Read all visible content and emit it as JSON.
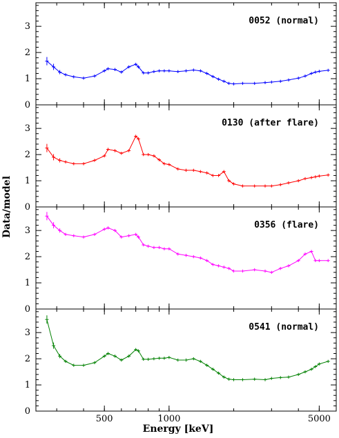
{
  "chart_data": {
    "type": "scatter",
    "xlabel": "Energy [keV]",
    "ylabel": "Data/model",
    "xscale": "log",
    "xlim": [
      240,
      6000
    ],
    "ylim": [
      0,
      3.9
    ],
    "x_ticks": [
      500,
      1000,
      5000
    ],
    "y_ticks": [
      0,
      1,
      2,
      3
    ],
    "x": [
      270,
      290,
      310,
      330,
      360,
      400,
      450,
      500,
      520,
      560,
      600,
      650,
      700,
      720,
      760,
      800,
      850,
      900,
      950,
      1000,
      1100,
      1200,
      1300,
      1400,
      1500,
      1600,
      1700,
      1800,
      1900,
      2000,
      2200,
      2500,
      2800,
      3000,
      3300,
      3600,
      4000,
      4300,
      4600,
      4800,
      5000,
      5500
    ],
    "series": [
      {
        "name": "",
        "label": "0052 (normal)",
        "color": "#0000ff",
        "values": [
          1.67,
          1.45,
          1.25,
          1.15,
          1.07,
          1.02,
          1.1,
          1.3,
          1.38,
          1.35,
          1.25,
          1.45,
          1.55,
          1.45,
          1.22,
          1.22,
          1.27,
          1.3,
          1.3,
          1.3,
          1.27,
          1.3,
          1.33,
          1.3,
          1.2,
          1.08,
          0.98,
          0.9,
          0.82,
          0.8,
          0.82,
          0.82,
          0.85,
          0.87,
          0.9,
          0.95,
          1.02,
          1.1,
          1.2,
          1.25,
          1.28,
          1.32
        ]
      },
      {
        "name": "",
        "label": "0130 (after flare)",
        "color": "#ff0000",
        "values": [
          2.25,
          1.9,
          1.78,
          1.72,
          1.65,
          1.65,
          1.78,
          1.95,
          2.2,
          2.15,
          2.05,
          2.15,
          2.7,
          2.6,
          2.0,
          2.0,
          1.95,
          1.8,
          1.65,
          1.62,
          1.45,
          1.4,
          1.4,
          1.35,
          1.3,
          1.2,
          1.2,
          1.35,
          1.0,
          0.88,
          0.8,
          0.8,
          0.8,
          0.8,
          0.85,
          0.92,
          1.0,
          1.08,
          1.12,
          1.15,
          1.18,
          1.22
        ]
      },
      {
        "name": "",
        "label": "0356 (flare)",
        "color": "#ff00ff",
        "values": [
          3.55,
          3.2,
          3.0,
          2.85,
          2.8,
          2.75,
          2.85,
          3.05,
          3.1,
          3.0,
          2.75,
          2.8,
          2.85,
          2.75,
          2.45,
          2.4,
          2.35,
          2.35,
          2.3,
          2.3,
          2.1,
          2.05,
          2.0,
          1.95,
          1.85,
          1.7,
          1.65,
          1.6,
          1.55,
          1.45,
          1.45,
          1.5,
          1.45,
          1.4,
          1.55,
          1.65,
          1.85,
          2.1,
          2.2,
          1.85,
          1.85,
          1.85
        ]
      },
      {
        "name": "",
        "label": "0541 (normal)",
        "color": "#008000",
        "values": [
          3.5,
          2.5,
          2.1,
          1.9,
          1.75,
          1.75,
          1.85,
          2.1,
          2.2,
          2.1,
          1.95,
          2.1,
          2.35,
          2.3,
          1.98,
          1.98,
          2.0,
          2.02,
          2.02,
          2.05,
          1.95,
          1.95,
          2.0,
          1.9,
          1.75,
          1.6,
          1.45,
          1.3,
          1.22,
          1.2,
          1.2,
          1.22,
          1.2,
          1.25,
          1.28,
          1.3,
          1.4,
          1.5,
          1.6,
          1.7,
          1.8,
          1.9
        ]
      }
    ],
    "grid": false,
    "legend": "none"
  }
}
